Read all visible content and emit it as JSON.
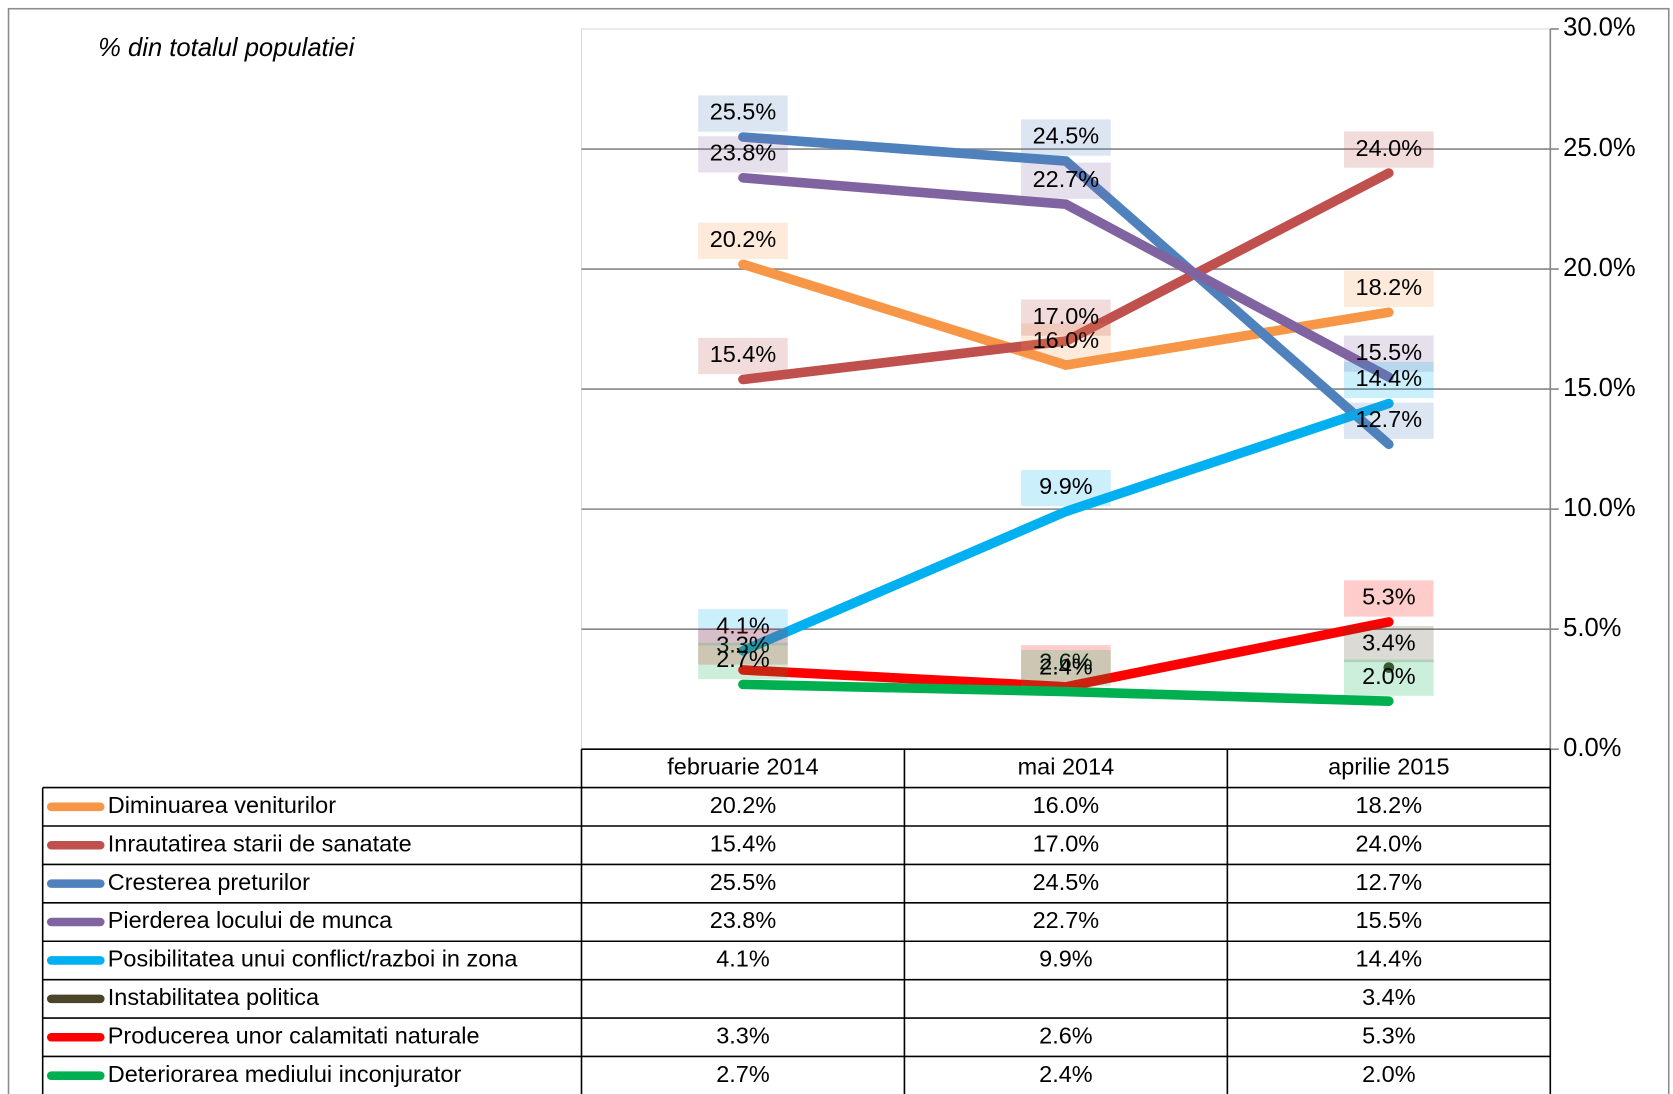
{
  "chart_data": {
    "type": "line",
    "annotation": "% din totalul populatiei",
    "categories": [
      "februarie 2014",
      "mai 2014",
      "aprilie 2015"
    ],
    "ylim": [
      0,
      30
    ],
    "yticks": [
      {
        "value": 0,
        "label": "0.0%"
      },
      {
        "value": 5,
        "label": "5.0%"
      },
      {
        "value": 10,
        "label": "10.0%"
      },
      {
        "value": 15,
        "label": "15.0%"
      },
      {
        "value": 20,
        "label": "20.0%"
      },
      {
        "value": 25,
        "label": "25.0%"
      },
      {
        "value": 30,
        "label": "30.0%"
      }
    ],
    "grid": true,
    "series": [
      {
        "name": "Diminuarea veniturilor",
        "color": "#f79646",
        "values": [
          20.2,
          16.0,
          18.2
        ],
        "value_labels": [
          "20.2%",
          "16.0%",
          "18.2%"
        ]
      },
      {
        "name": "Inrautatirea starii de sanatate",
        "color": "#c0504d",
        "values": [
          15.4,
          17.0,
          24.0
        ],
        "value_labels": [
          "15.4%",
          "17.0%",
          "24.0%"
        ]
      },
      {
        "name": "Cresterea preturilor",
        "color": "#4f81bd",
        "values": [
          25.5,
          24.5,
          12.7
        ],
        "value_labels": [
          "25.5%",
          "24.5%",
          "12.7%"
        ]
      },
      {
        "name": "Pierderea locului de munca",
        "color": "#8064a2",
        "values": [
          23.8,
          22.7,
          15.5
        ],
        "value_labels": [
          "23.8%",
          "22.7%",
          "15.5%"
        ]
      },
      {
        "name": "Posibilitatea unui conflict/razboi in zona",
        "color": "#00b0f0",
        "values": [
          4.1,
          9.9,
          14.4
        ],
        "value_labels": [
          "4.1%",
          "9.9%",
          "14.4%"
        ]
      },
      {
        "name": "Instabilitatea politica",
        "color": "#4a452a",
        "values": [
          null,
          null,
          3.4
        ],
        "value_labels": [
          null,
          null,
          "3.4%"
        ]
      },
      {
        "name": "Producerea unor calamitati naturale",
        "color": "#ff0000",
        "values": [
          3.3,
          2.6,
          5.3
        ],
        "value_labels": [
          "3.3%",
          "2.6%",
          "5.3%"
        ]
      },
      {
        "name": "Deteriorarea mediului inconjurator",
        "color": "#00b050",
        "values": [
          2.7,
          2.4,
          2.0
        ],
        "value_labels": [
          "2.7%",
          "2.4%",
          "2.0%"
        ]
      }
    ]
  }
}
